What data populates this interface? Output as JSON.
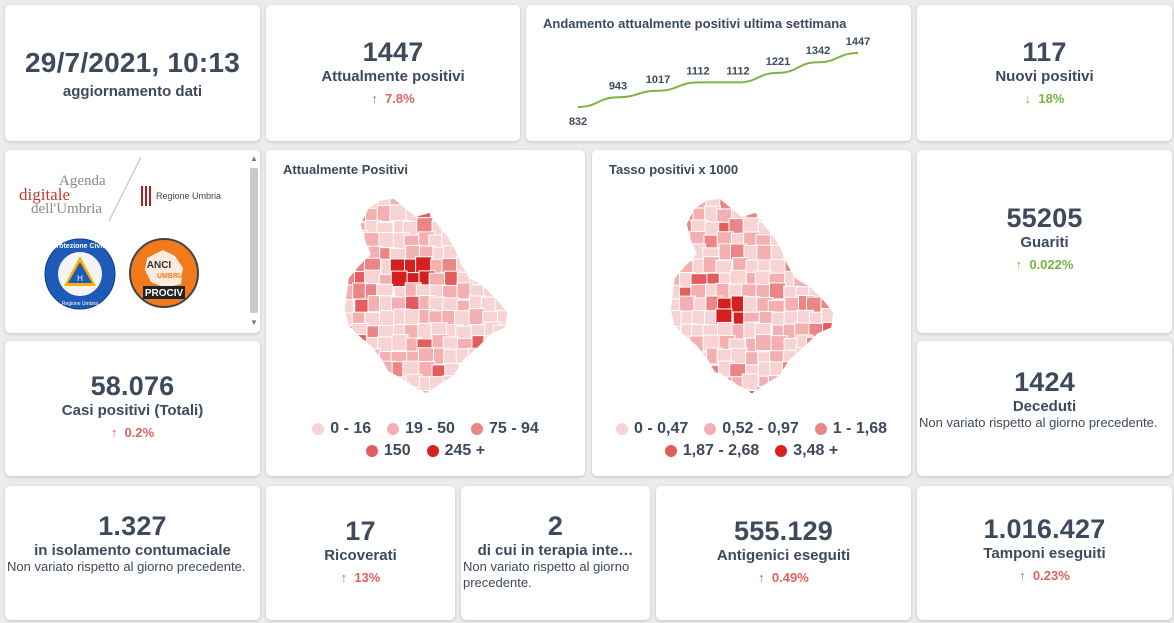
{
  "update": {
    "datetime": "29/7/2021, 10:13",
    "label": "aggiornamento dati"
  },
  "attualmente_positivi": {
    "value": "1447",
    "label": "Attualmente positivi",
    "delta": "7.8%",
    "arrow": "↑"
  },
  "trend": {
    "title": "Andamento attualmente positivi ultima settimana",
    "chart_data": {
      "type": "line",
      "title": "Andamento attualmente positivi ultima settimana",
      "x": [
        1,
        2,
        3,
        4,
        5,
        6,
        7,
        8
      ],
      "values": [
        832,
        943,
        1017,
        1112,
        1112,
        1221,
        1342,
        1447
      ],
      "labels": [
        "832",
        "943",
        "1017",
        "1112",
        "1112",
        "1221",
        "1342",
        "1447"
      ],
      "color": "#7cb342"
    }
  },
  "nuovi_positivi": {
    "value": "117",
    "label": "Nuovi positivi",
    "delta": "18%",
    "arrow": "↓"
  },
  "logos": {
    "agenda_line1": "Agenda",
    "agenda_line2": "digitale",
    "agenda_line3": "dell'Umbria",
    "regione": "Regione Umbria",
    "protezione": "Protezione Civile",
    "protezione_sub": "Regione Umbria",
    "anci_line1": "ANCI",
    "anci_line2": "UMBRIA",
    "anci_line3": "PROCIV"
  },
  "map_positivi": {
    "title": "Attualmente Positivi",
    "legend": [
      {
        "label": "0 - 16",
        "color": "#f8d3d3"
      },
      {
        "label": "19 - 50",
        "color": "#f4b0b0"
      },
      {
        "label": "75 - 94",
        "color": "#ec8585"
      },
      {
        "label": "150",
        "color": "#e35d5d"
      },
      {
        "label": "245 +",
        "color": "#d62020"
      }
    ]
  },
  "map_tasso": {
    "title": "Tasso positivi x 1000",
    "legend": [
      {
        "label": "0 - 0,47",
        "color": "#f8d3d3"
      },
      {
        "label": "0,52 - 0,97",
        "color": "#f4b0b0"
      },
      {
        "label": "1 - 1,68",
        "color": "#ec8585"
      },
      {
        "label": "1,87 - 2,68",
        "color": "#e35d5d"
      },
      {
        "label": "3,48 +",
        "color": "#d62020"
      }
    ]
  },
  "guariti": {
    "value": "55205",
    "label": "Guariti",
    "delta": "0.022%",
    "arrow": "↑"
  },
  "casi_totali": {
    "value": "58.076",
    "label": "Casi positivi (Totali)",
    "delta": "0.2%",
    "arrow": "↑"
  },
  "deceduti": {
    "value": "1424",
    "label": "Deceduti",
    "note": "Non variato rispetto al giorno precedente."
  },
  "isolamento": {
    "value": "1.327",
    "label": "in isolamento contumaciale",
    "note": "Non variato rispetto al giorno precedente."
  },
  "ricoverati": {
    "value": "17",
    "label": "Ricoverati",
    "delta": "13%",
    "arrow": "↑"
  },
  "terapia": {
    "value": "2",
    "label": "di cui in terapia inte…",
    "note": "Non variato rispetto al giorno precedente."
  },
  "antigenici": {
    "value": "555.129",
    "label": "Antigenici eseguiti",
    "delta": "0.49%",
    "arrow": "↑"
  },
  "tamponi": {
    "value": "1.016.427",
    "label": "Tamponi eseguiti",
    "delta": "0.23%",
    "arrow": "↑"
  }
}
